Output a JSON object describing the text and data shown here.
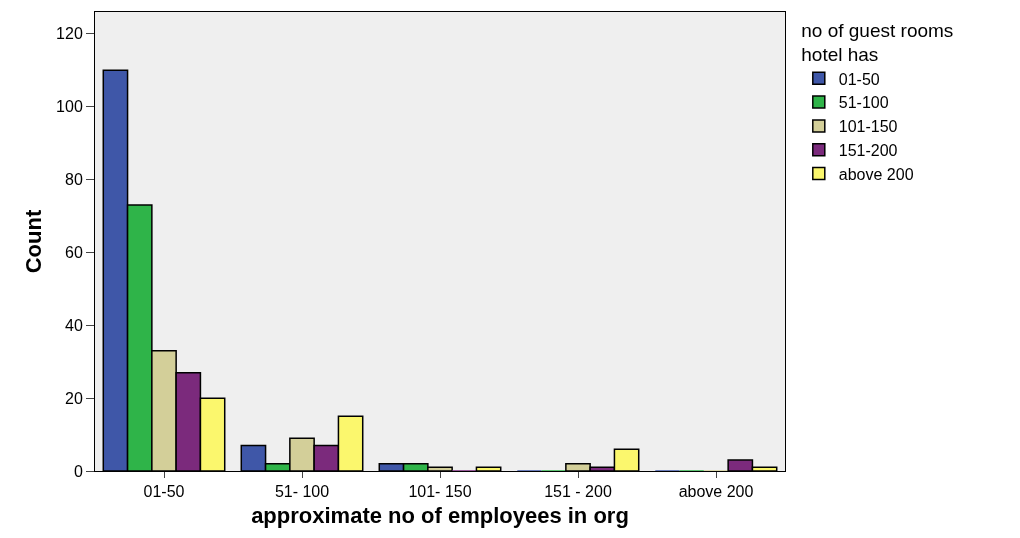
{
  "chart_data": {
    "type": "bar",
    "xlabel": "approximate no of employees in org",
    "ylabel": "Count",
    "legend_title": "no of guest rooms\nhotel has",
    "categories": [
      "01-50",
      "51- 100",
      "101- 150",
      "151 - 200",
      "above 200"
    ],
    "series": [
      {
        "name": "01-50",
        "color": "#3f57a8",
        "values": [
          110,
          7,
          2,
          0,
          0
        ]
      },
      {
        "name": "51-100",
        "color": "#2fb449",
        "values": [
          73,
          2,
          2,
          0,
          0
        ]
      },
      {
        "name": "101-150",
        "color": "#d3cf99",
        "values": [
          33,
          9,
          1,
          2,
          0
        ]
      },
      {
        "name": "151-200",
        "color": "#7b2a7c",
        "values": [
          27,
          7,
          0,
          1,
          3
        ]
      },
      {
        "name": "above 200",
        "color": "#fbf76d",
        "values": [
          20,
          15,
          1,
          6,
          1
        ]
      }
    ],
    "ylim": [
      0,
      126
    ],
    "yticks": [
      0,
      20,
      40,
      60,
      80,
      100,
      120
    ],
    "grid": false,
    "legend": "right"
  }
}
